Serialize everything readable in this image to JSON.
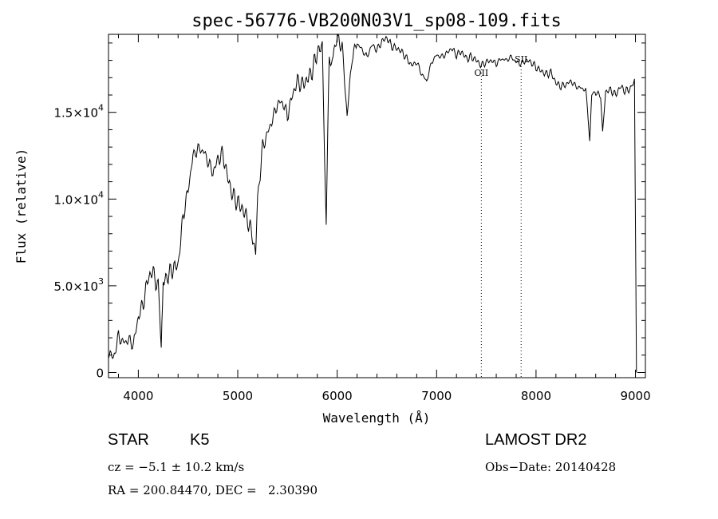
{
  "chart_data": {
    "type": "line",
    "title": "spec-56776-VB200N03V1_sp08-109.fits",
    "xlabel": "Wavelength (Å)",
    "ylabel": "Flux (relative)",
    "xlim": [
      3700,
      9100
    ],
    "ylim": [
      -300,
      19500
    ],
    "xticks": [
      4000,
      5000,
      6000,
      7000,
      8000,
      9000
    ],
    "xtick_labels": [
      "4000",
      "5000",
      "6000",
      "7000",
      "8000",
      "9000"
    ],
    "yticks": [
      0,
      5000,
      10000,
      15000
    ],
    "ytick_labels": [
      {
        "mant": "0",
        "exp": ""
      },
      {
        "mant": "5.0×10",
        "exp": "3"
      },
      {
        "mant": "1.0×10",
        "exp": "4"
      },
      {
        "mant": "1.5×10",
        "exp": "4"
      }
    ],
    "annotations": [
      {
        "label": "OII",
        "x": 7450
      },
      {
        "label": "SII",
        "x": 7850
      }
    ],
    "series": [
      {
        "x": [
          3700,
          3750,
          3800,
          3850,
          3900,
          3950,
          4000,
          4050,
          4100,
          4150,
          4200,
          4230,
          4250,
          4300,
          4350,
          4400,
          4450,
          4500,
          4550,
          4600,
          4650,
          4700,
          4750,
          4800,
          4850,
          4900,
          4950,
          5000,
          5050,
          5100,
          5150,
          5180,
          5200,
          5250,
          5300,
          5350,
          5400,
          5450,
          5500,
          5550,
          5600,
          5650,
          5700,
          5750,
          5800,
          5850,
          5890,
          5920,
          5950,
          6000,
          6050,
          6100,
          6150,
          6200,
          6250,
          6300,
          6350,
          6400,
          6450,
          6500,
          6550,
          6600,
          6650,
          6700,
          6750,
          6800,
          6850,
          6900,
          6950,
          7000,
          7050,
          7100,
          7150,
          7200,
          7250,
          7300,
          7350,
          7400,
          7450,
          7500,
          7550,
          7600,
          7650,
          7700,
          7750,
          7800,
          7850,
          7900,
          7950,
          8000,
          8050,
          8100,
          8150,
          8200,
          8250,
          8300,
          8350,
          8400,
          8450,
          8500,
          8540,
          8560,
          8600,
          8650,
          8670,
          8700,
          8750,
          8800,
          8850,
          8900,
          8950,
          8990,
          9010
        ],
        "y": [
          1200,
          800,
          2100,
          1700,
          1900,
          1600,
          3200,
          4000,
          5500,
          5800,
          4800,
          1800,
          5200,
          5600,
          6000,
          6200,
          9000,
          10500,
          12500,
          12900,
          12800,
          12200,
          11500,
          12300,
          12600,
          11200,
          10200,
          9800,
          9400,
          8800,
          7800,
          6500,
          10000,
          13000,
          13800,
          14600,
          15500,
          15600,
          14800,
          16000,
          16800,
          16600,
          16900,
          17400,
          18500,
          18800,
          8600,
          18000,
          18200,
          19300,
          18800,
          14800,
          18200,
          19000,
          18600,
          18200,
          18900,
          18600,
          19100,
          19300,
          18800,
          18700,
          18500,
          18100,
          17700,
          17900,
          17200,
          16800,
          17900,
          18300,
          18200,
          18400,
          18700,
          18300,
          18500,
          18100,
          18200,
          18000,
          17700,
          17900,
          18000,
          17800,
          18100,
          18000,
          18200,
          17900,
          17800,
          18000,
          17900,
          17600,
          17400,
          17200,
          17300,
          16700,
          16500,
          16600,
          16800,
          16500,
          16400,
          16300,
          13400,
          16200,
          16100,
          16000,
          14000,
          16200,
          16300,
          16000,
          16500,
          16200,
          16400,
          16900,
          0
        ]
      }
    ]
  },
  "info": {
    "obj_type": "STAR",
    "subclass": "K5",
    "survey": "LAMOST DR2",
    "cz": "cz = −5.1 ± 10.2 km/s",
    "obs_date": "Obs−Date: 20140428",
    "coords": "RA = 200.84470, DEC =   2.30390"
  }
}
